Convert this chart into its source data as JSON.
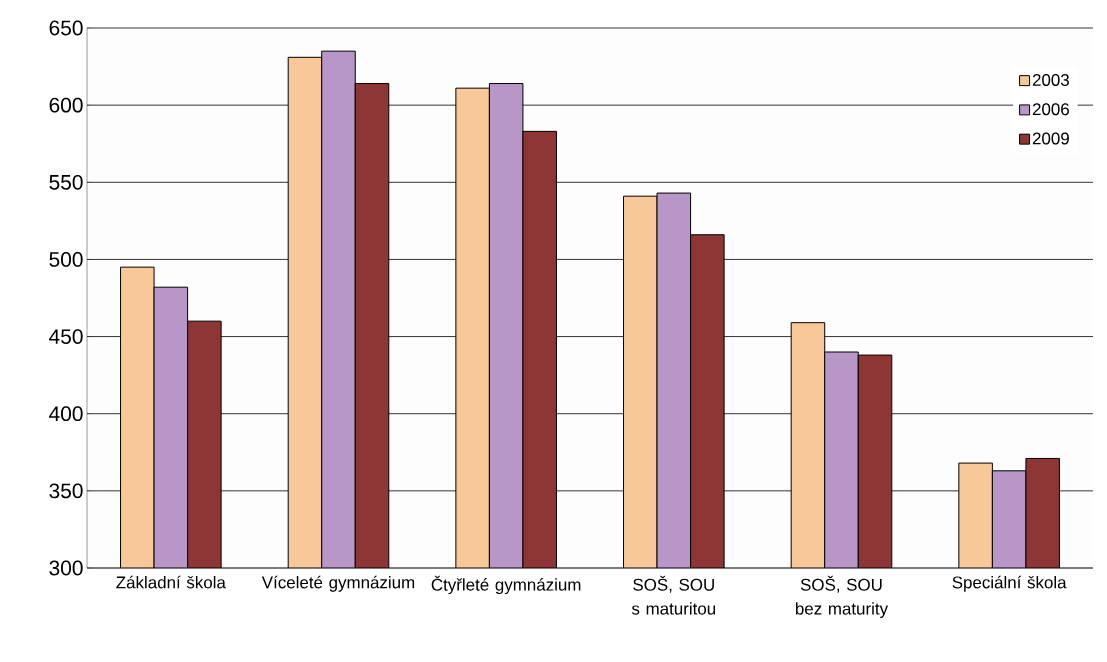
{
  "chart_data": {
    "type": "bar",
    "categories": [
      "Základní škola",
      "Víceleté gymnázium",
      "Čtyřleté gymnázium",
      "SOŠ, SOU s maturitou",
      "SOŠ, SOU bez maturity",
      "Speciální škola"
    ],
    "series": [
      {
        "name": "2003",
        "color": "#f8c898",
        "values": [
          495,
          631,
          611,
          541,
          459,
          368
        ]
      },
      {
        "name": "2006",
        "color": "#b896c8",
        "values": [
          482,
          635,
          614,
          543,
          440,
          363
        ]
      },
      {
        "name": "2009",
        "color": "#8e3535",
        "values": [
          460,
          614,
          583,
          516,
          438,
          371
        ]
      }
    ],
    "ylim": [
      300,
      650
    ],
    "yticks": [
      300,
      350,
      400,
      450,
      500,
      550,
      600,
      650
    ],
    "grid": "y",
    "legend": "top right"
  }
}
